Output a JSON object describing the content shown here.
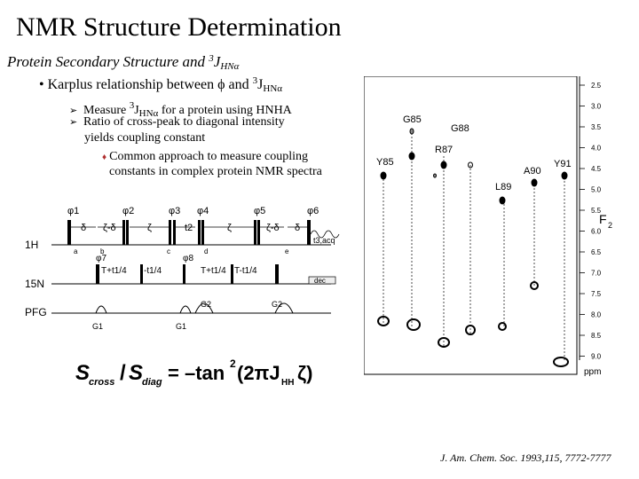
{
  "slide": {
    "title": "NMR Structure Determination",
    "subtitle_prefix": "Protein Secondary Structure and ",
    "subtitle_sup": "3",
    "subtitle_J": "J",
    "subtitle_sub": "HNα",
    "bullet_main": {
      "marker": "•",
      "text": "Karplus relationship between ϕ and ",
      "sup": "3",
      "J": "J",
      "sub": "HNα"
    },
    "subbullets": [
      {
        "marker": "➢",
        "pre": "Measure ",
        "sup": "3",
        "J": "J",
        "sub": "HNα",
        "post": " for a protein using HNHA"
      },
      {
        "marker": "➢",
        "text": "Ratio of cross-peak to diagonal intensity"
      }
    ],
    "subbullet2_cont": "yields coupling constant",
    "subsub": {
      "marker": "♦",
      "line1": "Common approach to measure coupling",
      "line2": "constants in complex protein NMR spectra"
    },
    "citation": "J. Am. Chem. Soc. 1993,115, 7772-7777"
  },
  "pulse_sequence": {
    "channels": [
      "1H",
      "15N",
      "PFG"
    ],
    "phases": [
      "φ1",
      "φ2",
      "φ3",
      "φ4",
      "φ5",
      "φ6",
      "φ7",
      "φ8"
    ],
    "delays": [
      "δ",
      "ζ-δ",
      "ζ",
      "t2",
      "ζ",
      "ζ-δ",
      "δ"
    ],
    "t3_label": "t3,acq",
    "n_labels": [
      "T+t1/4",
      "-t1/4",
      "T+t1/4",
      "T-t1/4",
      "dec"
    ],
    "gradients": [
      "G1",
      "G1",
      "G2",
      "G2"
    ],
    "small_labels": [
      "a",
      "b",
      "c",
      "d",
      "e"
    ]
  },
  "equation": {
    "lhs_S1": "S",
    "lhs_sub1": "cross",
    "lhs_S2": "S",
    "lhs_sub2": "diag",
    "rhs": "= –tan",
    "rhs_sup": "2",
    "rhs_arg": "(2πJ",
    "rhs_sub": "HH",
    "rhs_end": "ζ)"
  },
  "spectrum": {
    "y_axis_label": "F",
    "y_axis_sub": "2",
    "y_unit": "ppm",
    "ppm_ticks": [
      "2.5",
      "3.0",
      "3.5",
      "4.0",
      "4.5",
      "5.0",
      "5.5",
      "6.0",
      "6.5",
      "7.0",
      "7.5",
      "8.0",
      "8.5",
      "9.0"
    ],
    "residues": [
      {
        "label": "Y85"
      },
      {
        "label": "G85"
      },
      {
        "label": "R87"
      },
      {
        "label": "G88"
      },
      {
        "label": "L89"
      },
      {
        "label": "A90"
      },
      {
        "label": "Y91"
      }
    ]
  }
}
